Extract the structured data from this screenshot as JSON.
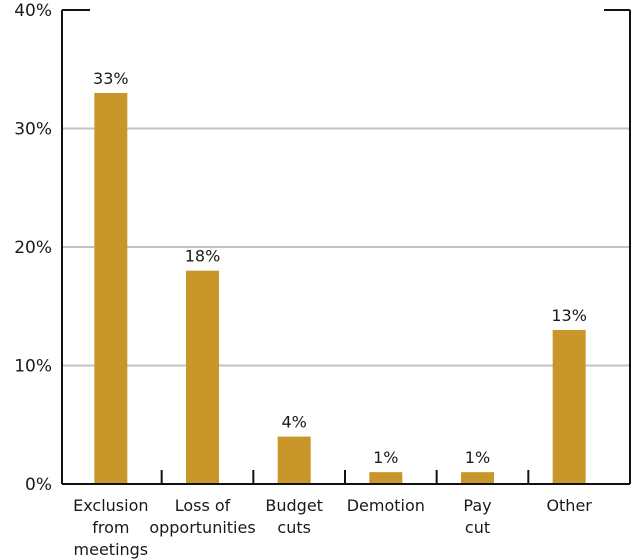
{
  "chart_data": {
    "type": "bar",
    "categories": [
      [
        "Exclusion",
        "from",
        "meetings"
      ],
      [
        "Loss of",
        "opportunities"
      ],
      [
        "Budget",
        "cuts"
      ],
      [
        "Demotion"
      ],
      [
        "Pay",
        "cut"
      ],
      [
        "Other"
      ]
    ],
    "values": [
      33,
      18,
      4,
      1,
      1,
      13
    ],
    "data_labels": [
      "33%",
      "18%",
      "4%",
      "1%",
      "1%",
      "13%"
    ],
    "y_ticks": [
      0,
      10,
      20,
      30,
      40
    ],
    "y_tick_labels": [
      "0%",
      "10%",
      "20%",
      "30%",
      "40%"
    ],
    "ylim": [
      0,
      40
    ],
    "grid": true,
    "title": "",
    "xlabel": "",
    "ylabel": "",
    "colors": {
      "bar": "#C9962A",
      "gridline": "#c2c2c2",
      "axis": "#111111"
    }
  }
}
